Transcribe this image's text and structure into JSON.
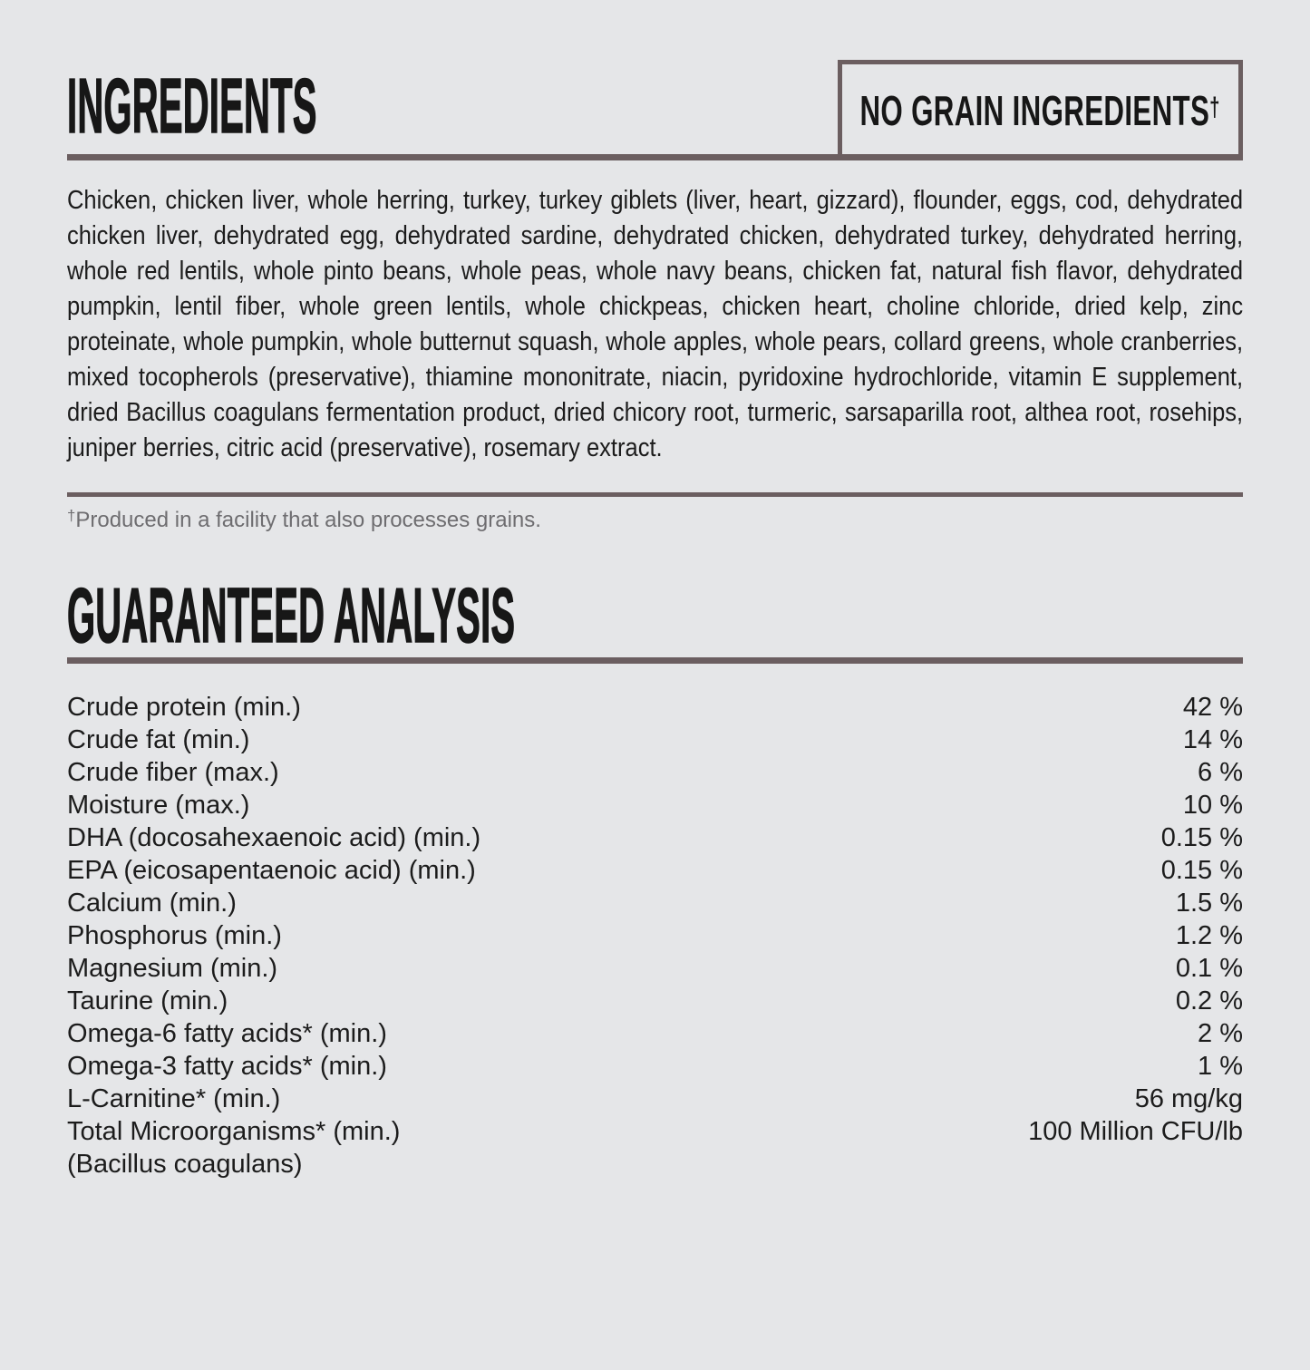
{
  "page": {
    "background_color": "#e5e6e8",
    "rule_color": "#6b5e60",
    "text_color": "#1a1a1a"
  },
  "ingredients": {
    "title": "INGREDIENTS",
    "no_grain_label": "NO GRAIN INGREDIENTS",
    "no_grain_dagger": "†",
    "list": "Chicken, chicken liver, whole herring, turkey, turkey giblets (liver, heart, gizzard), flounder, eggs, cod, dehydrated chicken liver, dehydrated egg, dehydrated sardine, dehydrated chicken, dehydrated turkey, dehydrated herring, whole red lentils, whole pinto beans, whole peas, whole navy beans, chicken fat, natural fish flavor, dehydrated pumpkin, lentil fiber, whole green lentils, whole chickpeas, chicken heart, choline chloride, dried kelp, zinc proteinate, whole pumpkin, whole butternut squash, whole apples, whole pears, collard greens, whole cranberries, mixed tocopherols (preservative), thiamine mononitrate, niacin, pyridoxine hydrochloride, vitamin E supplement, dried Bacillus coagulans fermentation product, dried chicory root, turmeric, sarsaparilla root, althea root, rosehips, juniper berries, citric acid (preservative), rosemary extract.",
    "footnote_dagger": "†",
    "footnote": "Produced in a facility that also processes grains."
  },
  "guaranteed_analysis": {
    "title": "GUARANTEED ANALYSIS",
    "rows": [
      {
        "label": "Crude protein (min.)",
        "value": "42 %"
      },
      {
        "label": "Crude fat (min.)",
        "value": "14 %"
      },
      {
        "label": "Crude fiber (max.)",
        "value": "6 %"
      },
      {
        "label": "Moisture (max.)",
        "value": "10 %"
      },
      {
        "label": "DHA (docosahexaenoic acid) (min.)",
        "value": "0.15 %"
      },
      {
        "label": "EPA (eicosapentaenoic acid) (min.)",
        "value": "0.15 %"
      },
      {
        "label": "Calcium (min.)",
        "value": "1.5 %"
      },
      {
        "label": "Phosphorus (min.)",
        "value": "1.2 %"
      },
      {
        "label": "Magnesium (min.)",
        "value": "0.1 %"
      },
      {
        "label": "Taurine (min.)",
        "value": "0.2 %"
      },
      {
        "label": "Omega-6 fatty acids* (min.)",
        "value": "2 %"
      },
      {
        "label": "Omega-3 fatty acids* (min.)",
        "value": "1 %"
      },
      {
        "label": "L-Carnitine* (min.)",
        "value": "56 mg/kg"
      },
      {
        "label": "Total Microorganisms* (min.)",
        "value": "100 Million CFU/lb"
      },
      {
        "label": "(Bacillus coagulans)",
        "value": ""
      }
    ]
  }
}
